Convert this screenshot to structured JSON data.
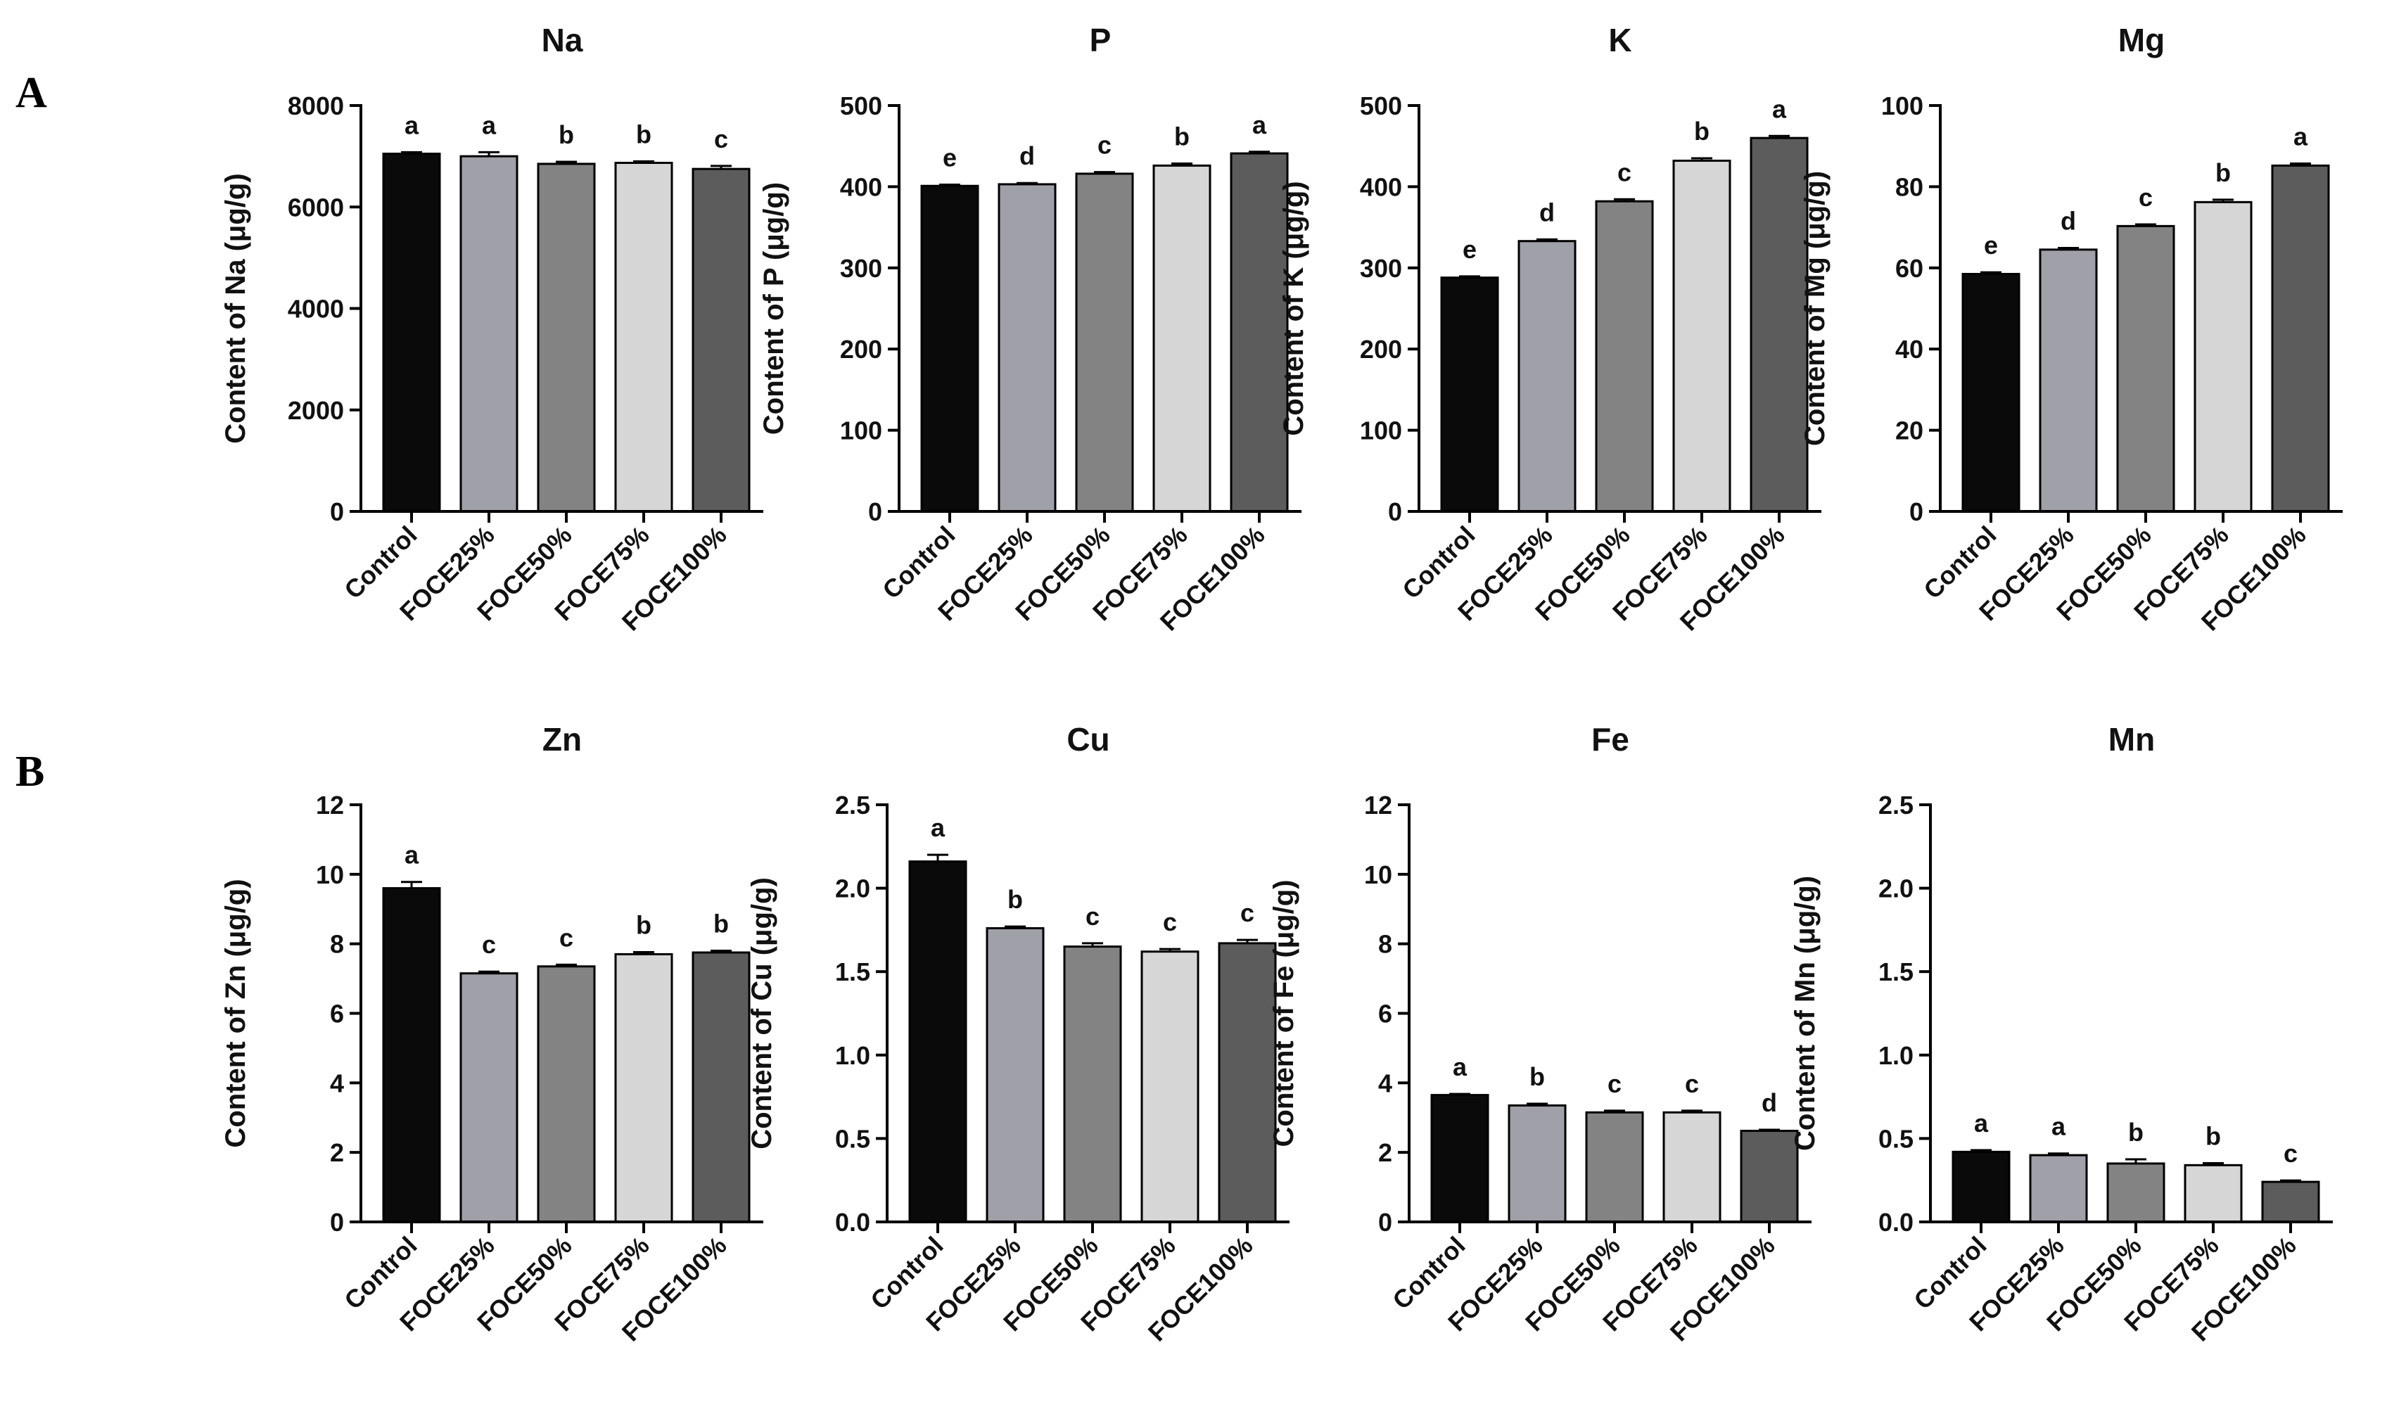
{
  "panel_labels": [
    "A",
    "B"
  ],
  "categories": [
    "Control",
    "FOCE25%",
    "FOCE50%",
    "FOCE75%",
    "FOCE100%"
  ],
  "bar_colors": [
    "#0a0a0a",
    "#a0a0a8",
    "#838383",
    "#d6d6d6",
    "#5c5c5c"
  ],
  "chart_data": [
    {
      "type": "bar",
      "title": "Na",
      "ylabel": "Content of Na (μg/g)",
      "ylim": [
        0,
        8000
      ],
      "yticks": [
        0,
        2000,
        4000,
        6000,
        8000
      ],
      "ytick_labels": [
        "0",
        "2000",
        "4000",
        "6000",
        "8000"
      ],
      "values": [
        7050,
        7000,
        6850,
        6870,
        6750
      ],
      "errors": [
        30,
        80,
        40,
        30,
        60
      ],
      "letters": [
        "a",
        "a",
        "b",
        "b",
        "c"
      ]
    },
    {
      "type": "bar",
      "title": "P",
      "ylabel": "Content of P (μg/g)",
      "ylim": [
        0,
        500
      ],
      "yticks": [
        0,
        100,
        200,
        300,
        400,
        500
      ],
      "ytick_labels": [
        "0",
        "100",
        "200",
        "300",
        "400",
        "500"
      ],
      "values": [
        401,
        403,
        416,
        426,
        441
      ],
      "errors": [
        1.5,
        1.5,
        2,
        2.5,
        2
      ],
      "letters": [
        "e",
        "d",
        "c",
        "b",
        "a"
      ]
    },
    {
      "type": "bar",
      "title": "K",
      "ylabel": "Content of K (μg/g)",
      "ylim": [
        0,
        500
      ],
      "yticks": [
        0,
        100,
        200,
        300,
        400,
        500
      ],
      "ytick_labels": [
        "0",
        "100",
        "200",
        "300",
        "400",
        "500"
      ],
      "values": [
        288,
        333,
        382,
        432,
        460
      ],
      "errors": [
        1.5,
        2,
        2.5,
        3,
        2.5
      ],
      "letters": [
        "e",
        "d",
        "c",
        "b",
        "a"
      ]
    },
    {
      "type": "bar",
      "title": "Mg",
      "ylabel": "Content of Mg (μg/g)",
      "ylim": [
        0,
        100
      ],
      "yticks": [
        0,
        20,
        40,
        60,
        80,
        100
      ],
      "ytick_labels": [
        "0",
        "20",
        "40",
        "60",
        "80",
        "100"
      ],
      "values": [
        58.5,
        64.5,
        70.3,
        76.2,
        85.2
      ],
      "errors": [
        0.4,
        0.4,
        0.4,
        0.6,
        0.5
      ],
      "letters": [
        "e",
        "d",
        "c",
        "b",
        "a"
      ]
    },
    {
      "type": "bar",
      "title": "Zn",
      "ylabel": "Content of Zn (μg/g)",
      "ylim": [
        0,
        12
      ],
      "yticks": [
        0,
        2,
        4,
        6,
        8,
        10,
        12
      ],
      "ytick_labels": [
        "0",
        "2",
        "4",
        "6",
        "8",
        "10",
        "12"
      ],
      "values": [
        9.6,
        7.15,
        7.35,
        7.7,
        7.75
      ],
      "errors": [
        0.18,
        0.05,
        0.05,
        0.06,
        0.05
      ],
      "letters": [
        "a",
        "c",
        "c",
        "b",
        "b"
      ]
    },
    {
      "type": "bar",
      "title": "Cu",
      "ylabel": "Content of Cu (μg/g)",
      "ylim": [
        0,
        2.5
      ],
      "yticks": [
        0,
        0.5,
        1,
        1.5,
        2,
        2.5
      ],
      "ytick_labels": [
        "0.0",
        "0.5",
        "1.0",
        "1.5",
        "2.0",
        "2.5"
      ],
      "values": [
        2.16,
        1.76,
        1.65,
        1.62,
        1.67
      ],
      "errors": [
        0.04,
        0.01,
        0.02,
        0.015,
        0.02
      ],
      "letters": [
        "a",
        "b",
        "c",
        "c",
        "c"
      ]
    },
    {
      "type": "bar",
      "title": "Fe",
      "ylabel": "Content of Fe (μg/g)",
      "ylim": [
        0,
        12
      ],
      "yticks": [
        0,
        2,
        4,
        6,
        8,
        10,
        12
      ],
      "ytick_labels": [
        "0",
        "2",
        "4",
        "6",
        "8",
        "10",
        "12"
      ],
      "values": [
        3.65,
        3.35,
        3.15,
        3.15,
        2.62
      ],
      "errors": [
        0.03,
        0.05,
        0.05,
        0.05,
        0.03
      ],
      "letters": [
        "a",
        "b",
        "c",
        "c",
        "d"
      ]
    },
    {
      "type": "bar",
      "title": "Mn",
      "ylabel": "Content of Mn (μg/g)",
      "ylim": [
        0,
        2.5
      ],
      "yticks": [
        0,
        0.5,
        1,
        1.5,
        2,
        2.5
      ],
      "ytick_labels": [
        "0.0",
        "0.5",
        "1.0",
        "1.5",
        "2.0",
        "2.5"
      ],
      "values": [
        0.42,
        0.4,
        0.35,
        0.34,
        0.24
      ],
      "errors": [
        0.01,
        0.01,
        0.025,
        0.012,
        0.008
      ],
      "letters": [
        "a",
        "a",
        "b",
        "b",
        "c"
      ]
    }
  ]
}
